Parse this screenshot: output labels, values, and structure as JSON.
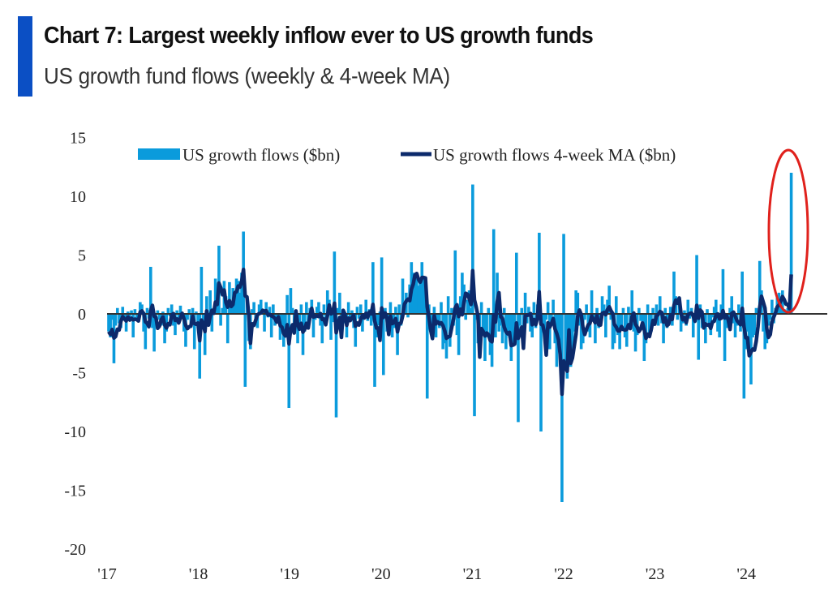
{
  "header": {
    "title": "Chart 7: Largest weekly inflow ever to US growth funds",
    "subtitle": "US growth fund flows (weekly & 4-week MA)"
  },
  "colors": {
    "accent": "#0b4fc4",
    "bars": "#0a9bdc",
    "ma_line": "#0c2a6b",
    "zero_line": "#333333",
    "highlight": "#e0211c"
  },
  "chart_data": {
    "type": "bar",
    "title": "Chart 7: Largest weekly inflow ever to US growth funds",
    "subtitle": "US growth fund flows (weekly & 4-week MA)",
    "xlabel": "",
    "ylabel": "",
    "x_start": "2017-01",
    "frequency": "weekly",
    "xlim": [
      "2017-01",
      "2024-07"
    ],
    "ylim": [
      -20,
      15
    ],
    "yticks": [
      15,
      10,
      5,
      0,
      -5,
      -10,
      -15,
      -20
    ],
    "ytick_labels": [
      "15",
      "10",
      "5",
      "0",
      "-5",
      "-10",
      "-15",
      "-20"
    ],
    "xtick_labels": [
      "'17",
      "'18",
      "'19",
      "'20",
      "'21",
      "'22",
      "'23",
      "'24"
    ],
    "grid": false,
    "legend_position": "top",
    "annotation": "red ellipse highlighting latest weekly inflow",
    "series": [
      {
        "name": "US growth flows ($bn)",
        "type": "bar",
        "values": [
          -1.5,
          -2,
          -0.5,
          -4.2,
          -1,
          0.5,
          -0.8,
          -1.2,
          0.6,
          -0.3,
          -1.5,
          0.2,
          -0.5,
          0.3,
          -2,
          0.4,
          -0.6,
          -0.2,
          1,
          0.8,
          -1.5,
          -3,
          0.5,
          -0.4,
          4,
          -1.2,
          -3.2,
          -0.8,
          0.3,
          -0.5,
          -1,
          0.2,
          -2.5,
          -1.5,
          0.5,
          -0.2,
          0.8,
          -1,
          -1.8,
          0.3,
          -0.6,
          0.7,
          -0.2,
          -1.5,
          -2.8,
          -0.5,
          0.4,
          -1.2,
          0.5,
          -3,
          0.2,
          -0.8,
          -5.5,
          4,
          -1,
          -3.5,
          1.5,
          -0.8,
          2,
          -1.5,
          0.5,
          3,
          1.2,
          5.8,
          -1,
          0.5,
          2.8,
          1.5,
          -2.5,
          2.7,
          0.8,
          2.2,
          1.5,
          3,
          2.8,
          1.8,
          3.5,
          7,
          -6.2,
          1.5,
          -2.3,
          -3,
          0.4,
          1,
          -0.5,
          -1.2,
          0.8,
          1.2,
          0.4,
          -1.5,
          1,
          -0.3,
          0.6,
          -2,
          0.8,
          -1,
          -0.6,
          -0.2,
          -2.2,
          -1.5,
          -2.8,
          -1,
          1.6,
          -8,
          2.2,
          0.5,
          -1.2,
          -0.5,
          -2.5,
          -1,
          0.8,
          -3.5,
          -1.5,
          1,
          -0.8,
          0.5,
          1.2,
          -2,
          -0.5,
          0.6,
          1,
          -1,
          -2.5,
          0.8,
          -1,
          2,
          1.2,
          -2.2,
          -0.7,
          5.3,
          -8.8,
          0.5,
          1.8,
          -1.5,
          0.4,
          -0.8,
          -2,
          1,
          -0.5,
          0.3,
          -1.2,
          -2.8,
          0.6,
          -0.4,
          0.8,
          -1.5,
          -0.3,
          1.2,
          -0.6,
          0.4,
          -1,
          4.4,
          -6.2,
          -2,
          -1,
          0.2,
          4.8,
          -5.2,
          0.5,
          -1.5,
          -0.8,
          1,
          -2,
          -1.2,
          0.6,
          -3.5,
          0.8,
          -1,
          3,
          0.5,
          1.8,
          -0.3,
          2.5,
          4.4,
          3.5,
          2.8,
          3,
          2.4,
          2.6,
          4.4,
          3,
          2.2,
          -7.2,
          0.8,
          -1.5,
          -0.5,
          0.6,
          -2,
          -0.8,
          -1.2,
          1,
          -3,
          -2.5,
          -3.8,
          1.5,
          -2.8,
          0.5,
          -1,
          5.4,
          -1.8,
          -3.5,
          1.5,
          3.5,
          2.5,
          -0.5,
          1.2,
          2,
          0.5,
          11,
          -8.7,
          -0.5,
          -2.5,
          -3,
          1,
          -1.5,
          -4,
          -2,
          0.5,
          -3.5,
          -4.5,
          7.2,
          -2,
          3.5,
          -1.5,
          -1,
          -2.5,
          0.5,
          -3,
          -1.8,
          -2,
          -4,
          -2.8,
          -1.5,
          5.2,
          -9.2,
          -1,
          0.5,
          -2,
          1.8,
          -0.8,
          0.6,
          -1.5,
          -2,
          1,
          -1.2,
          0.8,
          6.9,
          -10,
          -1.5,
          -2,
          -0.5,
          1,
          -3,
          -0.8,
          1.2,
          -2.5,
          -4.5,
          -3,
          -3.8,
          -16,
          6.8,
          -4.8,
          -5.5,
          -2,
          -4.5,
          -3,
          -1.5,
          2,
          1.8,
          -1,
          -3,
          -2.5,
          -0.5,
          0.8,
          -1.5,
          -2,
          2,
          -0.5,
          -2.5,
          0.5,
          -1.2,
          -0.6,
          1.5,
          0.8,
          -2,
          1.2,
          2.4,
          -0.5,
          -3,
          -2.5,
          1.5,
          -1.8,
          -3,
          -1,
          0.5,
          -2,
          -2.8,
          0.6,
          -0.8,
          2,
          -1.5,
          -3.2,
          -1.8,
          0.5,
          -0.6,
          -1.2,
          -4,
          -2.5,
          0.8,
          -2,
          -1.5,
          0.5,
          -0.5,
          0.8,
          -1,
          1.5,
          -0.8,
          -2.5,
          0.5,
          -1.2,
          -0.3,
          0.6,
          -1,
          3.6,
          1.5,
          -0.5,
          0.8,
          -1.5,
          -0.8,
          0.3,
          -1,
          1.2,
          -0.4,
          0.5,
          -2,
          -0.6,
          5,
          -3.9,
          0.8,
          -1.2,
          -0.5,
          -2.5,
          0.4,
          -1,
          -1.8,
          -0.3,
          0.6,
          1.2,
          -1.5,
          -2,
          0.8,
          3.8,
          -4,
          -1.2,
          -0.6,
          0.5,
          1.5,
          -0.8,
          -2,
          -1,
          0.8,
          -1.5,
          3.6,
          -7.2,
          -3,
          -1.5,
          -2.5,
          -6,
          -2,
          -1.8,
          0.5,
          -1,
          4.5,
          2,
          -1.5,
          -3,
          -2.5,
          -1,
          -0.5,
          1.2,
          -0.8,
          0.5,
          1.5,
          1.8,
          0.6,
          2,
          0.4,
          0.3,
          0.5,
          0.6,
          12
        ]
      },
      {
        "name": "US growth flows 4-week MA ($bn)",
        "type": "line",
        "moving_average_of": "US growth flows ($bn)",
        "window_weeks": 4
      }
    ]
  }
}
